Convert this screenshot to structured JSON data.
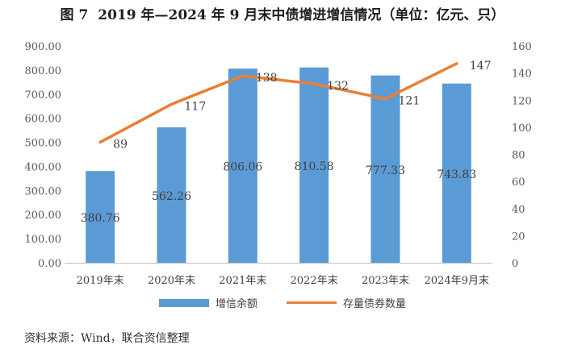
{
  "title": {
    "figure_label": "图 7",
    "text": "2019 年—2024 年 9 月末中债增进增信情况（单位：亿元、只）"
  },
  "chart_data": {
    "type": "bar",
    "categories": [
      "2019年末",
      "2020年末",
      "2021年末",
      "2022年末",
      "2023年末",
      "2024年9月末"
    ],
    "series": [
      {
        "name": "增信余额",
        "type": "bar",
        "axis": "left",
        "color": "#5b9bd5",
        "values": [
          380.76,
          562.26,
          806.06,
          810.58,
          777.33,
          743.83
        ],
        "labels": [
          "380.76",
          "562.26",
          "806.06",
          "810.58",
          "777.33",
          "743.83"
        ]
      },
      {
        "name": "存量债券数量",
        "type": "line",
        "axis": "right",
        "color": "#ed7d31",
        "values": [
          89,
          117,
          138,
          132,
          121,
          147
        ],
        "labels": [
          "89",
          "117",
          "138",
          "132",
          "121",
          "147"
        ]
      }
    ],
    "y_left": {
      "lim": [
        0,
        900
      ],
      "ticks": [
        "0.00",
        "100.00",
        "200.00",
        "300.00",
        "400.00",
        "500.00",
        "600.00",
        "700.00",
        "800.00",
        "900.00"
      ]
    },
    "y_right": {
      "lim": [
        0,
        160
      ],
      "ticks": [
        "0",
        "20",
        "40",
        "60",
        "80",
        "100",
        "120",
        "140",
        "160"
      ]
    },
    "grid": false,
    "legend_position": "bottom"
  },
  "source": "资料来源：Wind，联合资信整理"
}
